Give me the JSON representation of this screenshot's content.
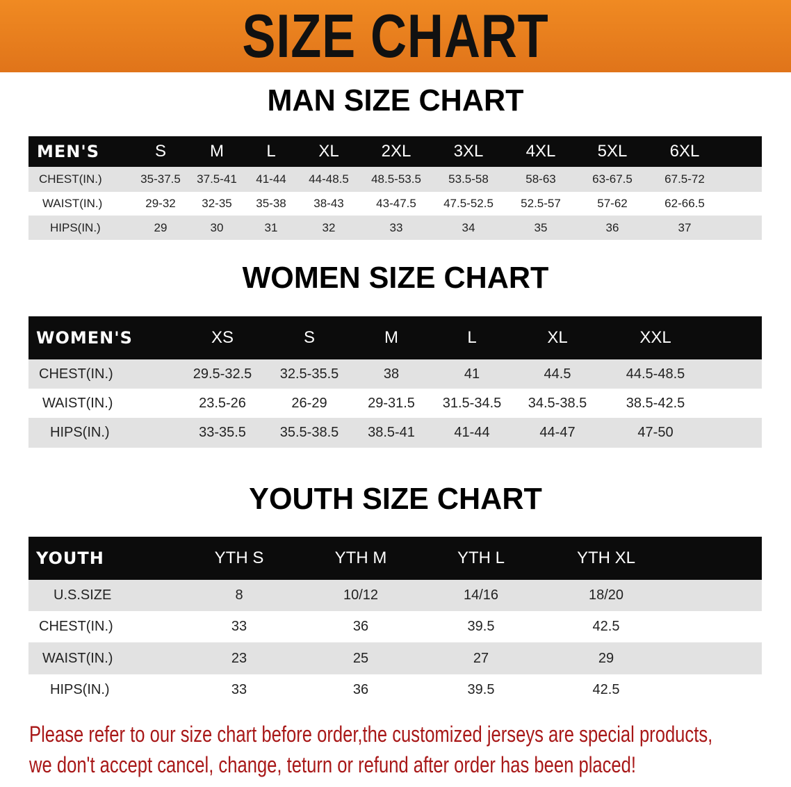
{
  "banner": {
    "title": "SIZE CHART",
    "color": "#e8791d"
  },
  "men": {
    "title": "MAN SIZE CHART",
    "header": [
      "MEN'S",
      "S",
      "M",
      "L",
      "XL",
      "2XL",
      "3XL",
      "4XL",
      "5XL",
      "6XL"
    ],
    "rows": [
      [
        "CHEST(IN.)",
        "35-37.5",
        "37.5-41",
        "41-44",
        "44-48.5",
        "48.5-53.5",
        "53.5-58",
        "58-63",
        "63-67.5",
        "67.5-72"
      ],
      [
        "WAIST(IN.)",
        "29-32",
        "32-35",
        "35-38",
        "38-43",
        "43-47.5",
        "47.5-52.5",
        "52.5-57",
        "57-62",
        "62-66.5"
      ],
      [
        "HIPS(IN.)",
        "29",
        "30",
        "31",
        "32",
        "33",
        "34",
        "35",
        "36",
        "37"
      ]
    ]
  },
  "women": {
    "title": "WOMEN SIZE CHART",
    "header": [
      "WOMEN'S",
      "XS",
      "S",
      "M",
      "L",
      "XL",
      "XXL"
    ],
    "rows": [
      [
        "CHEST(IN.)",
        "29.5-32.5",
        "32.5-35.5",
        "38",
        "41",
        "44.5",
        "44.5-48.5"
      ],
      [
        "WAIST(IN.)",
        "23.5-26",
        "26-29",
        "29-31.5",
        "31.5-34.5",
        "34.5-38.5",
        "38.5-42.5"
      ],
      [
        "HIPS(IN.)",
        "33-35.5",
        "35.5-38.5",
        "38.5-41",
        "41-44",
        "44-47",
        "47-50"
      ]
    ]
  },
  "youth": {
    "title": "YOUTH SIZE CHART",
    "header": [
      "YOUTH",
      "YTH S",
      "YTH M",
      "YTH L",
      "YTH XL"
    ],
    "rows": [
      [
        "U.S.SIZE",
        "8",
        "10/12",
        "14/16",
        "18/20"
      ],
      [
        "CHEST(IN.)",
        "33",
        "36",
        "39.5",
        "42.5"
      ],
      [
        "WAIST(IN.)",
        "23",
        "25",
        "27",
        "29"
      ],
      [
        "HIPS(IN.)",
        "33",
        "36",
        "39.5",
        "42.5"
      ]
    ]
  },
  "notice": {
    "line1": "Please refer to our size chart before order,the customized jerseys are special products,",
    "line2": "we don't accept cancel, change, teturn or refund after order has been placed!",
    "color": "#a81818"
  }
}
